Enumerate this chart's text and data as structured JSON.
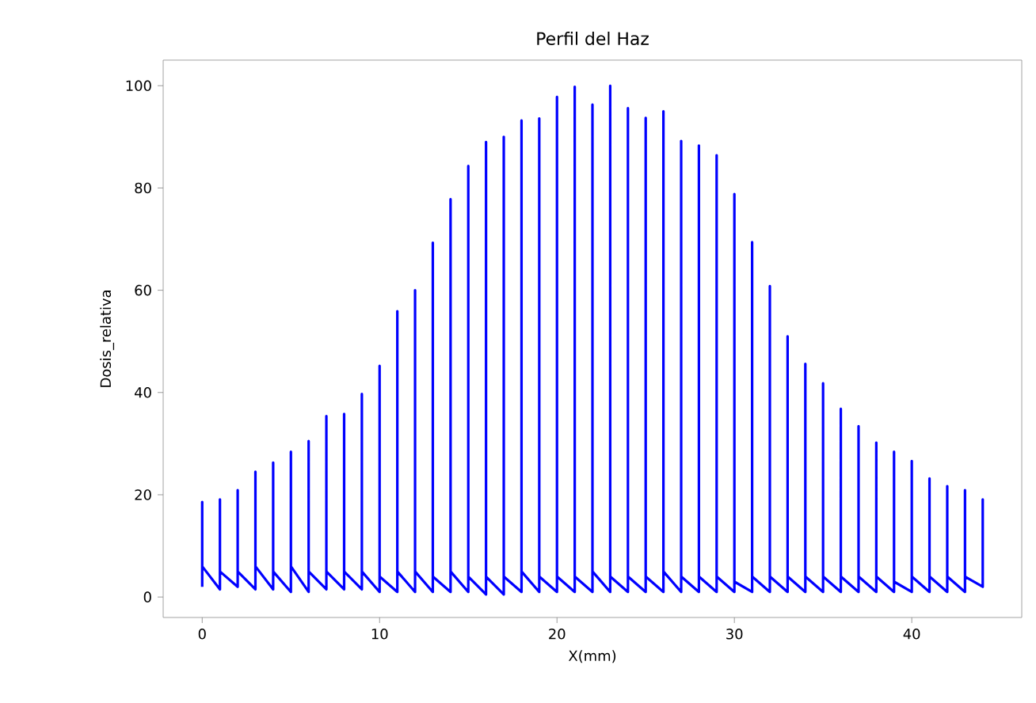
{
  "chart_data": {
    "type": "line",
    "title": "Perfil del Haz",
    "xlabel": "X(mm)",
    "ylabel": "Dosis_relativa",
    "xlim": [
      -2.2,
      46.2
    ],
    "ylim": [
      -4,
      105
    ],
    "xticks": [
      0,
      10,
      20,
      30,
      40
    ],
    "yticks": [
      0,
      20,
      40,
      60,
      80,
      100
    ],
    "grid": false,
    "marker": "none",
    "line_style": "solid",
    "series": [
      {
        "color": "#0000ff",
        "x": [
          0,
          0,
          0,
          1,
          1,
          1,
          2,
          2,
          2,
          3,
          3,
          3,
          4,
          4,
          4,
          5,
          5,
          5,
          6,
          6,
          6,
          7,
          7,
          7,
          8,
          8,
          8,
          9,
          9,
          9,
          10,
          10,
          10,
          11,
          11,
          11,
          12,
          12,
          12,
          13,
          13,
          13,
          14,
          14,
          14,
          15,
          15,
          15,
          16,
          16,
          16,
          17,
          17,
          17,
          18,
          18,
          18,
          19,
          19,
          19,
          20,
          20,
          20,
          21,
          21,
          21,
          22,
          22,
          22,
          23,
          23,
          23,
          24,
          24,
          24,
          25,
          25,
          25,
          26,
          26,
          26,
          27,
          27,
          27,
          28,
          28,
          28,
          29,
          29,
          29,
          30,
          30,
          30,
          31,
          31,
          31,
          32,
          32,
          32,
          33,
          33,
          33,
          34,
          34,
          34,
          35,
          35,
          35,
          36,
          36,
          36,
          37,
          37,
          37,
          38,
          38,
          38,
          39,
          39,
          39,
          40,
          40,
          40,
          41,
          41,
          41,
          42,
          42,
          42,
          43,
          43,
          43,
          44,
          44,
          44
        ],
        "values": [
          2,
          18.6,
          6,
          1.5,
          19.1,
          5,
          2,
          20.9,
          5,
          1.5,
          24.5,
          6,
          1.5,
          26.3,
          5,
          1,
          28.4,
          6,
          1,
          30.5,
          5,
          1.5,
          35.4,
          5,
          1.5,
          35.8,
          5,
          1.5,
          39.7,
          5,
          1,
          45.2,
          4,
          1,
          55.9,
          5,
          1,
          60,
          5,
          1,
          69.3,
          4,
          1,
          77.8,
          5,
          1,
          84.3,
          4,
          0.5,
          89,
          4,
          0.5,
          90,
          4,
          1,
          93.2,
          5,
          1,
          93.6,
          4,
          1,
          97.8,
          4,
          1,
          99.8,
          4,
          1,
          96.3,
          5,
          1,
          100,
          4,
          1,
          95.6,
          4,
          1,
          93.7,
          4,
          1,
          95,
          5,
          1,
          89.2,
          4,
          1,
          88.3,
          4,
          1,
          86.4,
          4,
          1,
          78.8,
          3,
          1,
          69.4,
          4,
          1,
          60.8,
          4,
          1,
          51,
          4,
          1,
          45.6,
          4,
          1,
          41.8,
          4,
          1,
          36.8,
          4,
          1,
          33.4,
          4,
          1,
          30.2,
          4,
          1,
          28.4,
          3,
          1,
          26.6,
          4,
          1,
          23.2,
          4,
          1,
          21.7,
          4,
          1,
          20.9,
          4,
          2,
          19.1,
          4
        ]
      }
    ]
  }
}
